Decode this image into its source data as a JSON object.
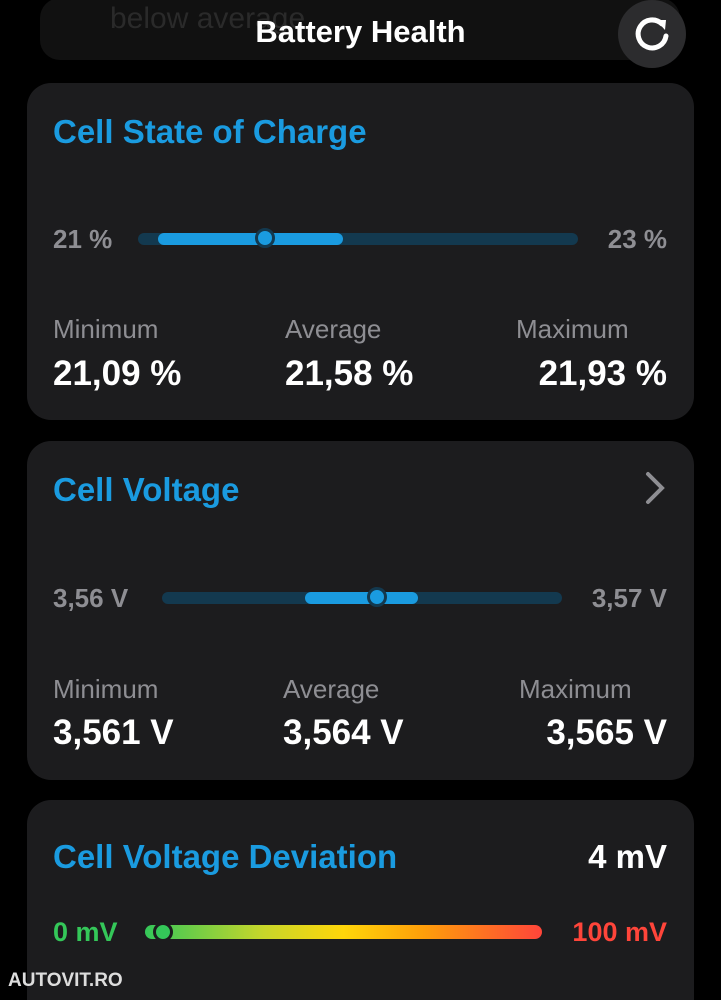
{
  "header": {
    "title": "Battery Health",
    "faded_text": "below average"
  },
  "cards": [
    {
      "title": "Cell State of Charge",
      "range_min": "21 %",
      "range_max": "23 %",
      "stats": [
        {
          "label": "Minimum",
          "value": "21,09 %"
        },
        {
          "label": "Average",
          "value": "21,58 %"
        },
        {
          "label": "Maximum",
          "value": "21,93 %"
        }
      ]
    },
    {
      "title": "Cell Voltage",
      "range_min": "3,56 V",
      "range_max": "3,57 V",
      "stats": [
        {
          "label": "Minimum",
          "value": "3,561 V"
        },
        {
          "label": "Average",
          "value": "3,564 V"
        },
        {
          "label": "Maximum",
          "value": "3,565 V"
        }
      ]
    },
    {
      "title": "Cell Voltage Deviation",
      "value": "4 mV",
      "range_min": "0 mV",
      "range_max": "100 mV"
    }
  ],
  "watermark": "AUTOVIT.RO"
}
